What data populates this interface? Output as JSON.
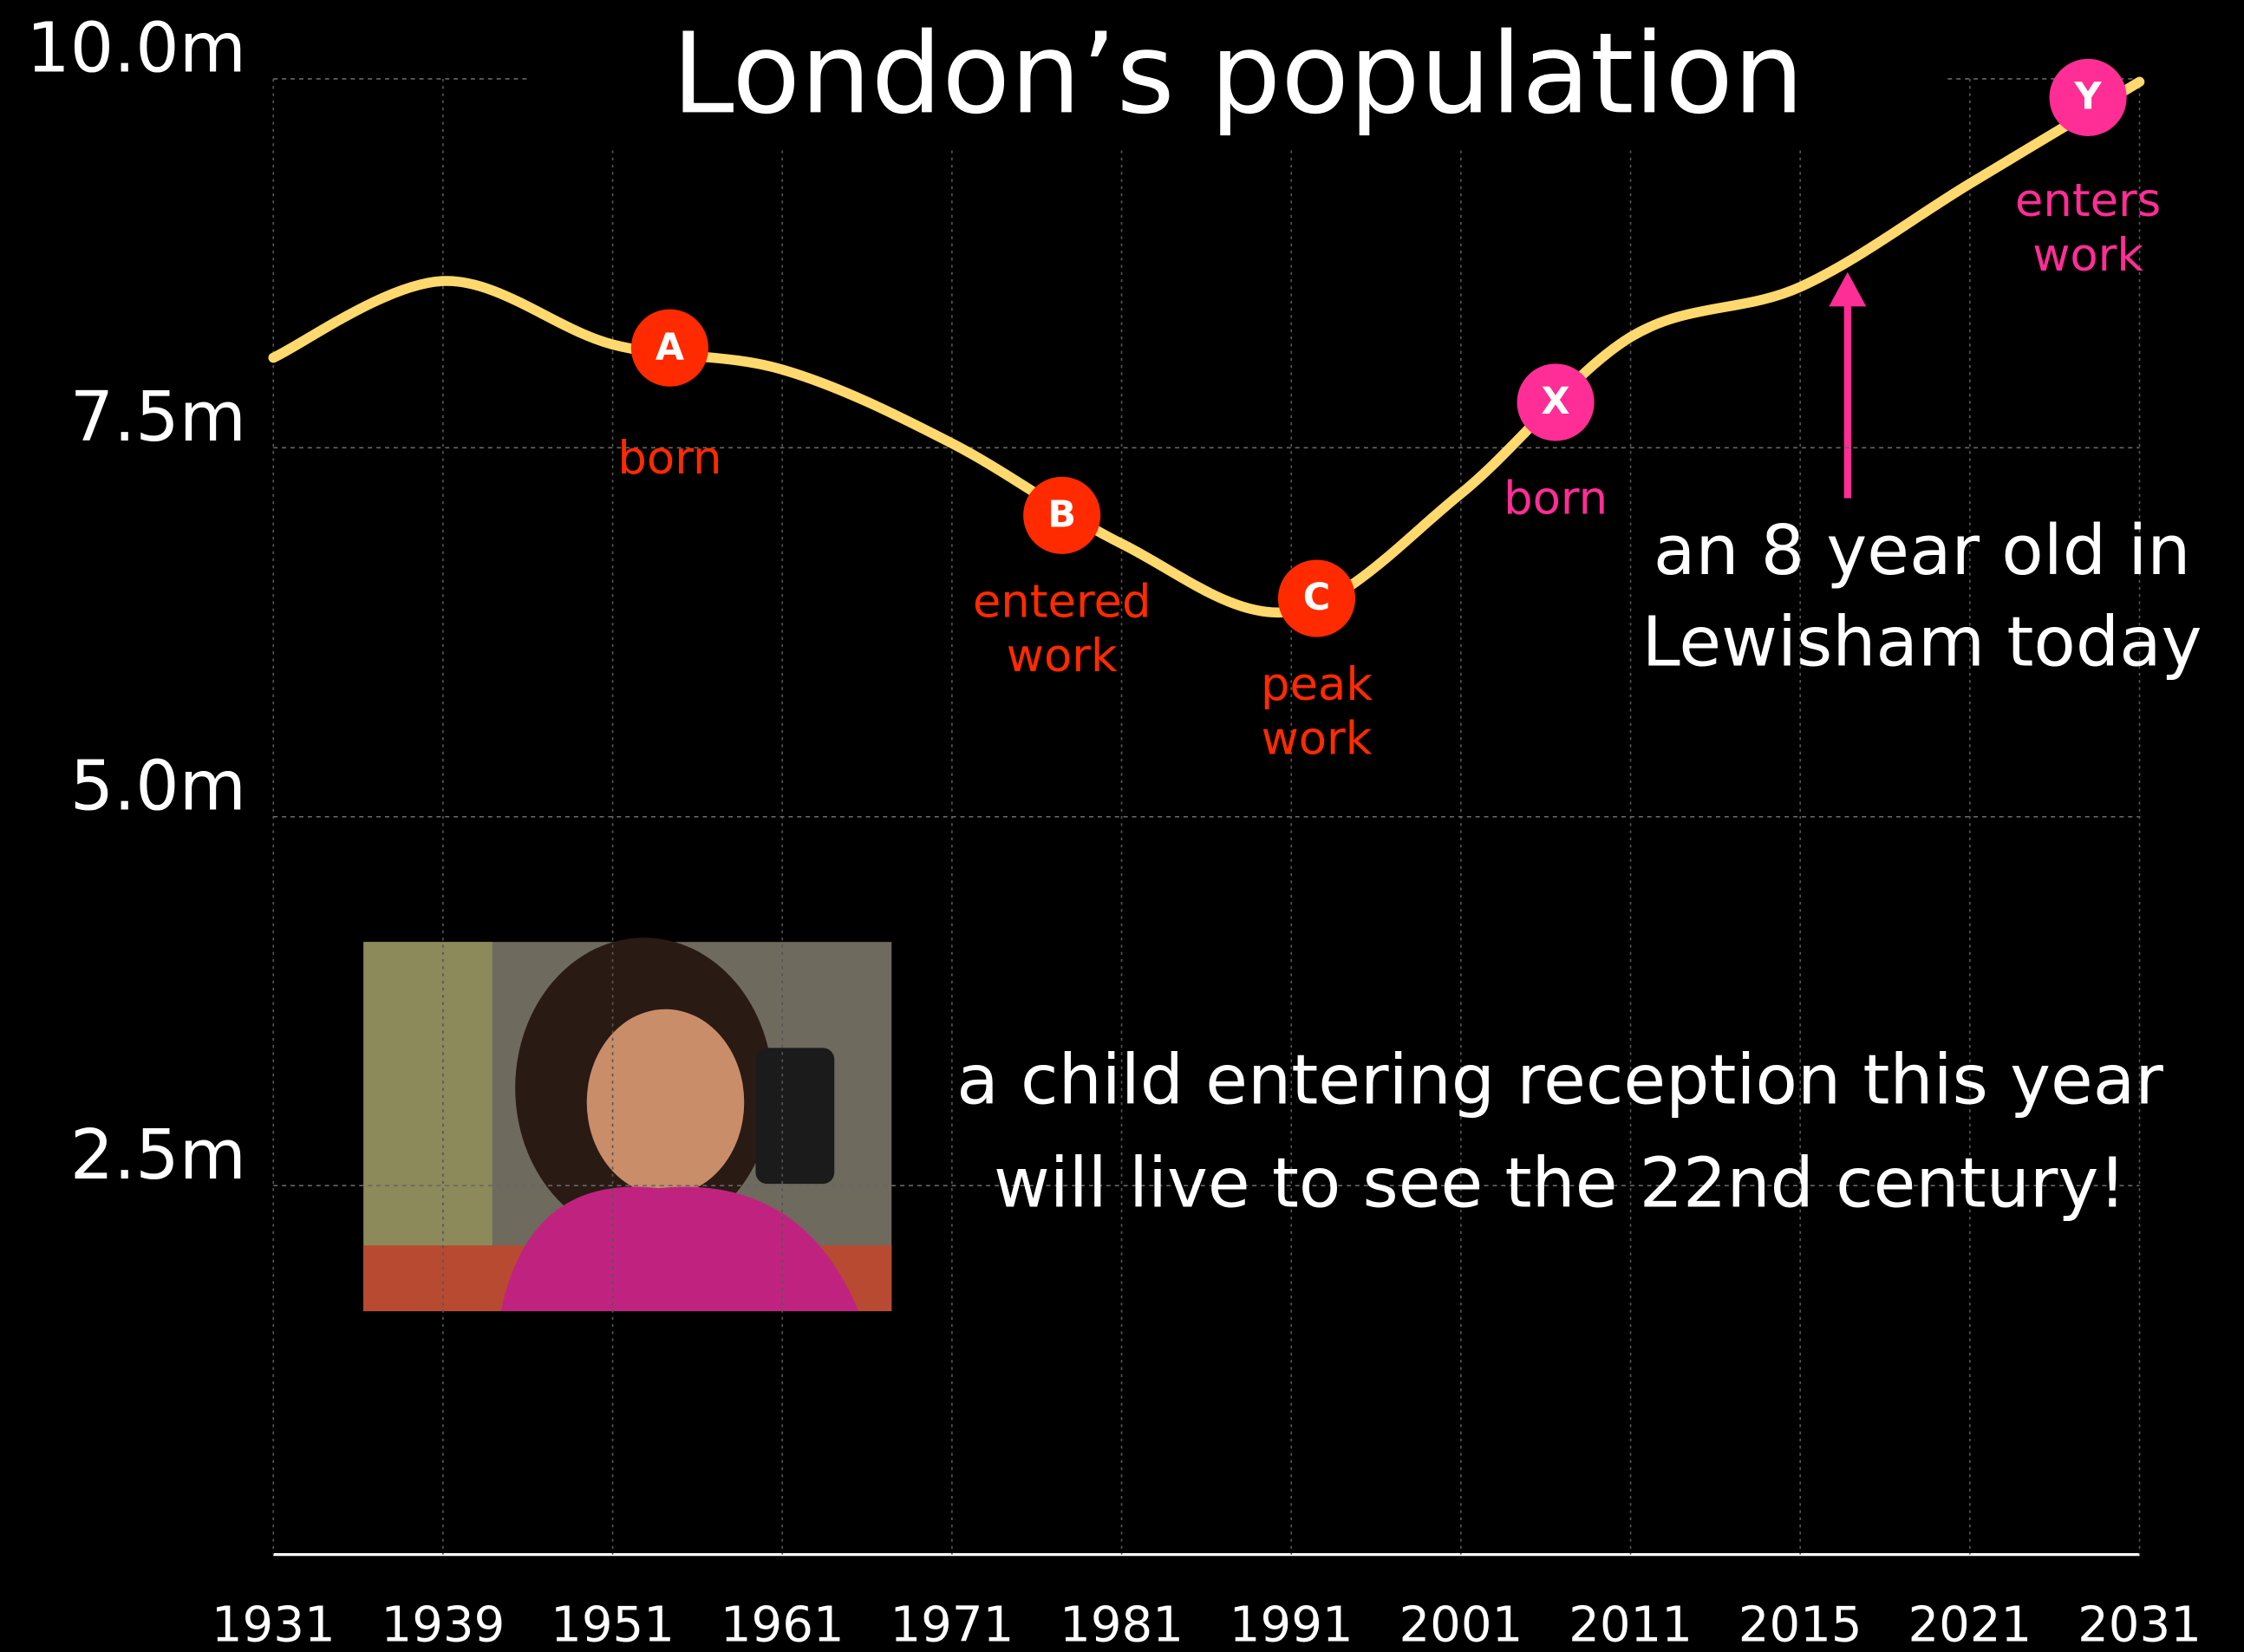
{
  "chart_data": {
    "type": "line",
    "title": "London’s population",
    "categories": [
      "1931",
      "1939",
      "1951",
      "1961",
      "1971",
      "1981",
      "1991",
      "2001",
      "2011",
      "2015",
      "2021",
      "2031"
    ],
    "values": [
      8.11,
      8.63,
      8.2,
      8.03,
      7.53,
      6.85,
      6.39,
      7.19,
      8.25,
      8.59,
      9.29,
      9.98
    ],
    "color": "#ffd86e",
    "ylim": [
      0,
      10
    ],
    "yticks": [
      {
        "value": 2.5,
        "label": "2.5m"
      },
      {
        "value": 5,
        "label": "5.0m"
      },
      {
        "value": 7.5,
        "label": "7.5m"
      },
      {
        "value": 10,
        "label": "10.0m"
      }
    ],
    "grid": true,
    "annotations": [
      {
        "marker": "A",
        "text": [
          "born"
        ],
        "color": "#ff2a00"
      },
      {
        "marker": "B",
        "text": [
          "entered",
          "work"
        ],
        "color": "#ff2a00"
      },
      {
        "marker": "C",
        "text": [
          "peak",
          "work"
        ],
        "color": "#ff2a00"
      },
      {
        "marker": "X",
        "text": [
          "born"
        ],
        "color": "#ff2d95"
      },
      {
        "marker": "Y",
        "text": [
          "enters",
          "work"
        ],
        "color": "#ff2d95"
      }
    ],
    "note": [
      "an 8 year old in",
      "Lewisham today"
    ],
    "caption": [
      "a child entering reception this year",
      "will live to see the 22nd century!"
    ]
  }
}
